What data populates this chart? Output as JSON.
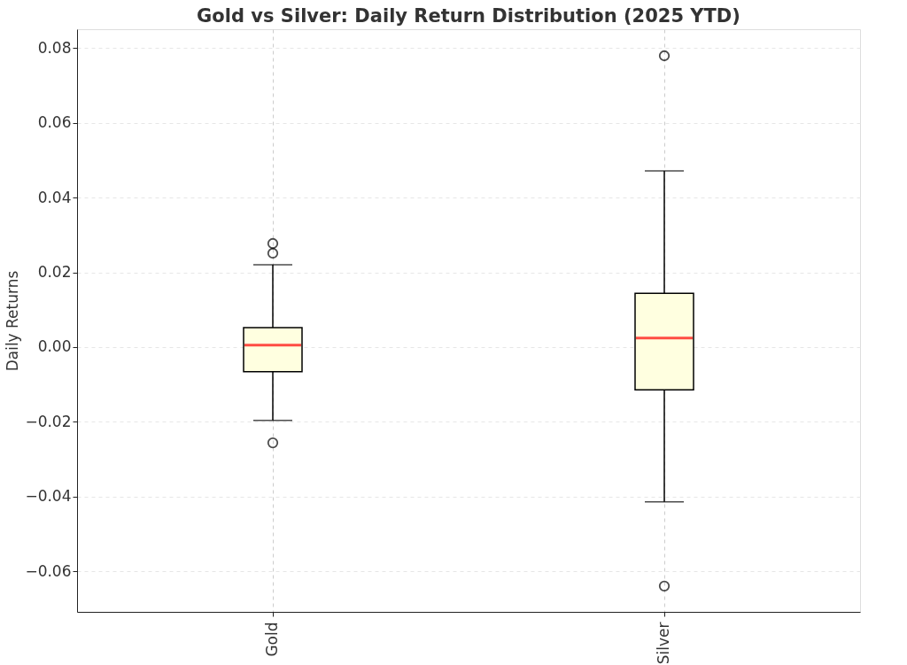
{
  "chart_data": {
    "type": "box",
    "title": "Gold vs Silver: Daily Return Distribution (2025 YTD)",
    "ylabel": "Daily Returns",
    "categories": [
      "Gold",
      "Silver"
    ],
    "series": [
      {
        "color": "#ffffe0",
        "boxes": [
          {
            "low": -0.0196,
            "q1": -0.0066,
            "median": 0.0005,
            "q3": 0.0052,
            "high": 0.022,
            "outliers": [
              0.0277,
              0.0251,
              -0.0256
            ]
          },
          {
            "low": -0.0414,
            "q1": -0.0114,
            "median": 0.0024,
            "q3": 0.0144,
            "high": 0.0471,
            "outliers": [
              0.0779,
              -0.0639
            ]
          }
        ]
      }
    ],
    "ylim": [
      -0.0708,
      0.085
    ],
    "yticks": [
      {
        "value": -0.06,
        "label": "−0.06"
      },
      {
        "value": -0.04,
        "label": "−0.04"
      },
      {
        "value": -0.02,
        "label": "−0.02"
      },
      {
        "value": 0,
        "label": "0.00"
      },
      {
        "value": 0.02,
        "label": "0.02"
      },
      {
        "value": 0.04,
        "label": "0.04"
      },
      {
        "value": 0.06,
        "label": "0.06"
      },
      {
        "value": 0.08,
        "label": "0.08"
      }
    ],
    "grid": true
  }
}
